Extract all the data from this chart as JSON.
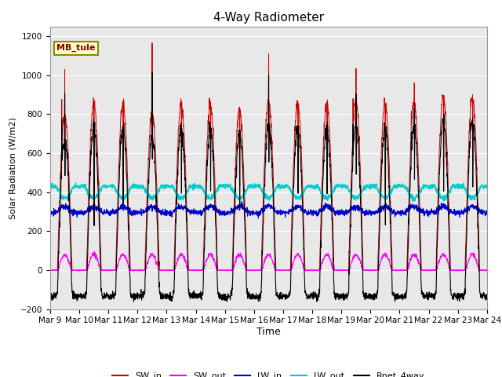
{
  "title": "4-Way Radiometer",
  "xlabel": "Time",
  "ylabel": "Solar Radiation (W/m2)",
  "ylim": [
    -200,
    1250
  ],
  "xtick_labels": [
    "Mar 9",
    "Mar 10",
    "Mar 11",
    "Mar 12",
    "Mar 13",
    "Mar 14",
    "Mar 15",
    "Mar 16",
    "Mar 17",
    "Mar 18",
    "Mar 19",
    "Mar 20",
    "Mar 21",
    "Mar 22",
    "Mar 23",
    "Mar 24"
  ],
  "station_label": "MB_tule",
  "background_color": "#ffffff",
  "plot_bg_color": "#e8e8e8",
  "sw_in_color": "#cc0000",
  "sw_out_color": "#ff00ff",
  "lw_in_color": "#0000cc",
  "lw_out_color": "#00cccc",
  "rnet_color": "#000000",
  "n_days": 15,
  "pts_per_day": 144
}
